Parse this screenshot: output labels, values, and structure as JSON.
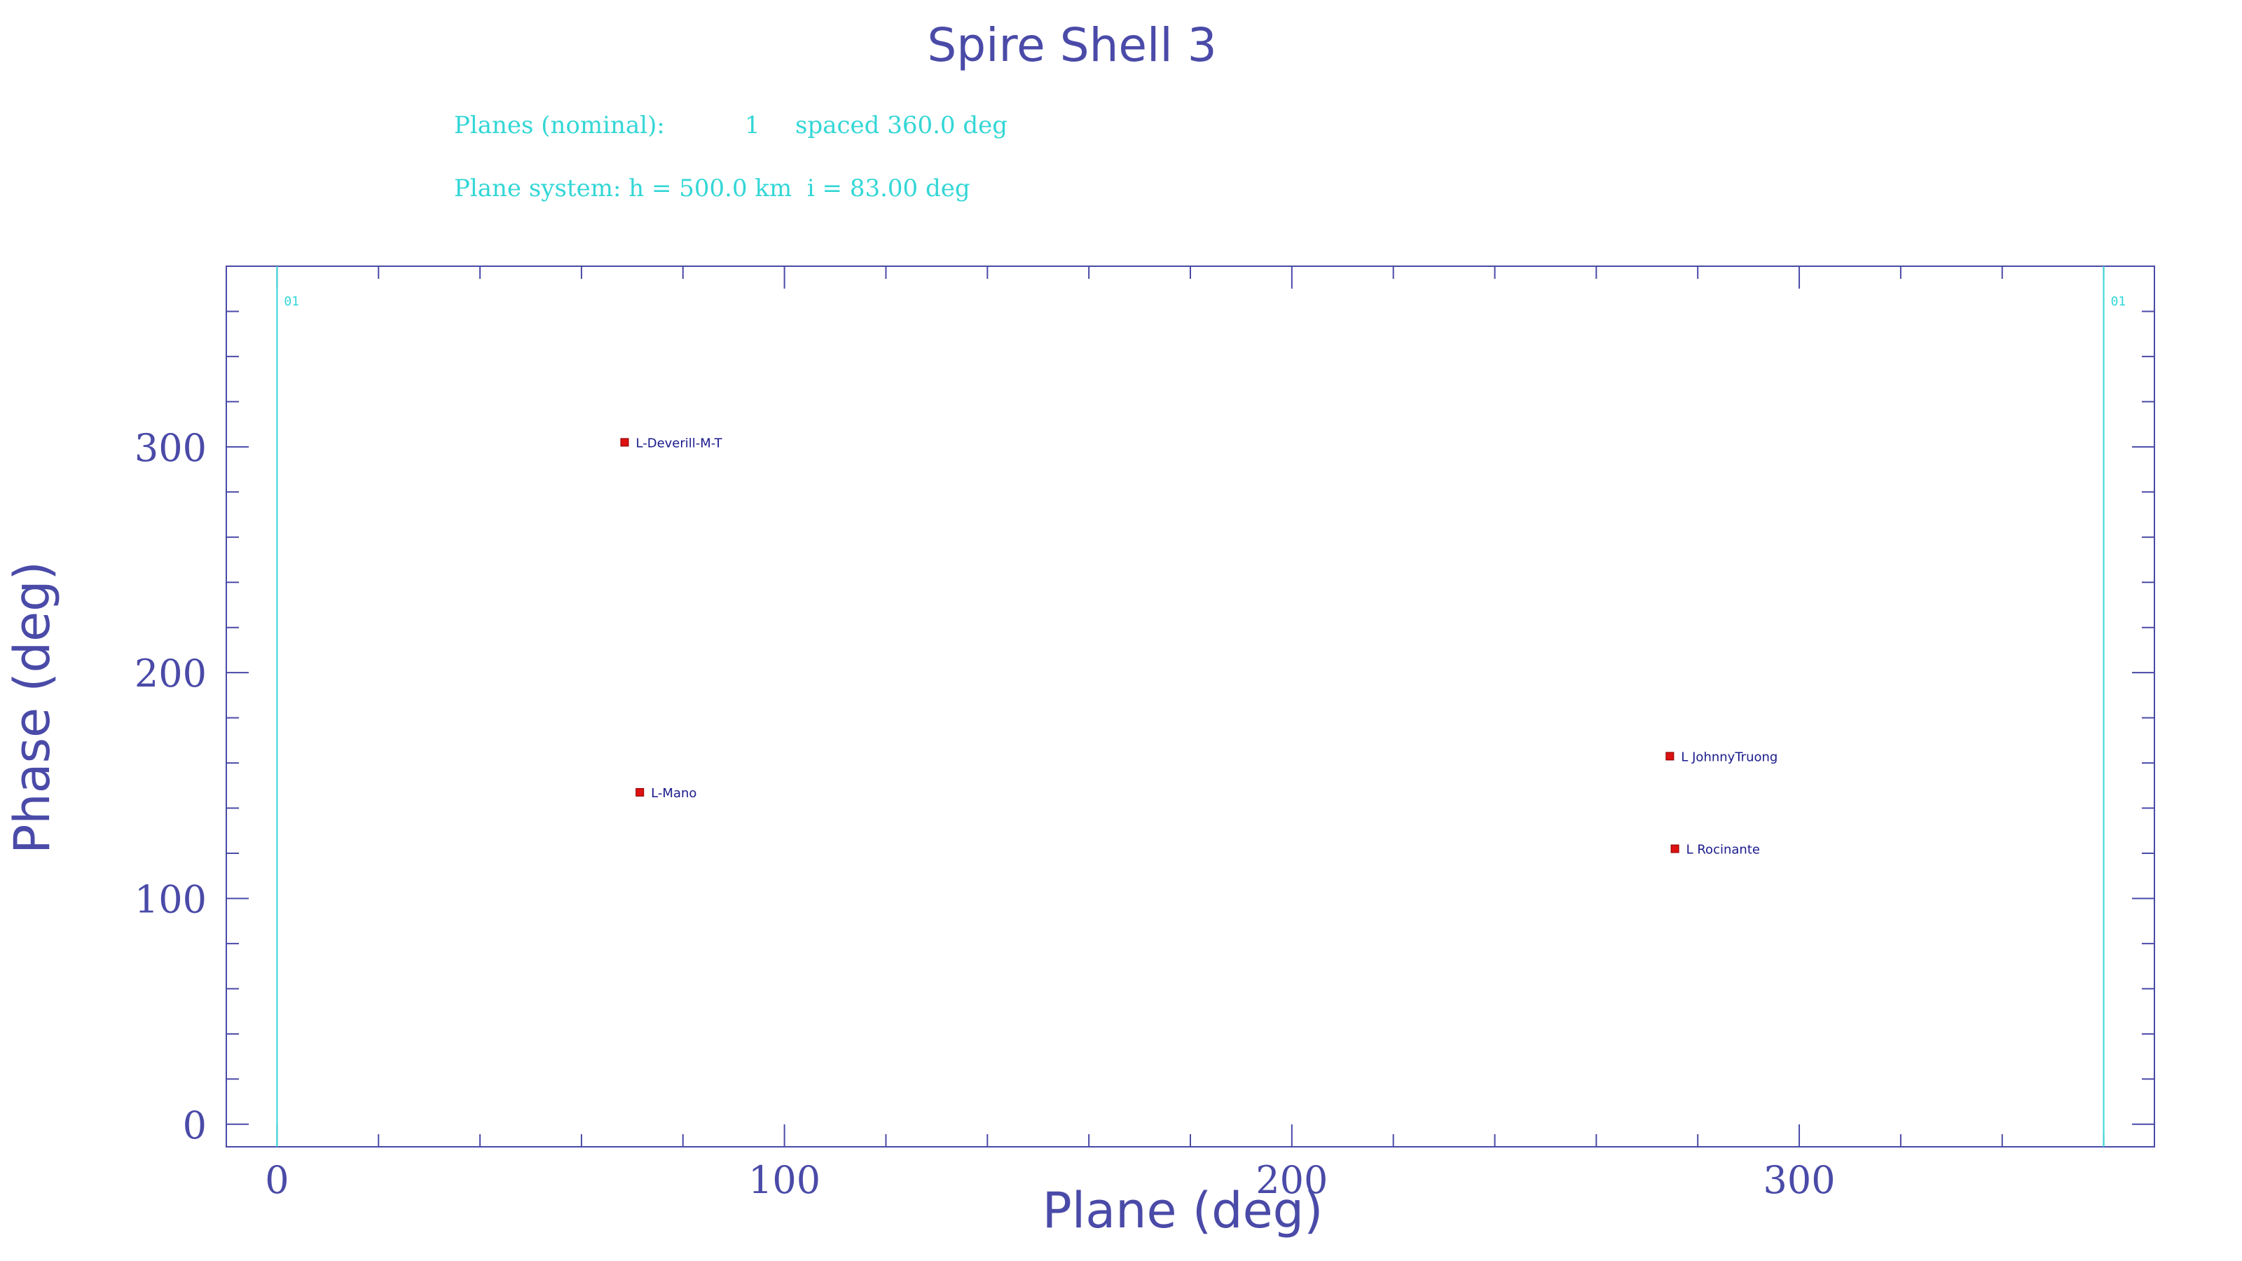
{
  "chart_data": {
    "type": "scatter",
    "title": "Spire Shell 3",
    "info_lines": [
      {
        "label": "Planes (nominal):",
        "count": "1",
        "spacing": "spaced 360.0 deg"
      },
      {
        "label": "Plane system: h = 500.0 km  i = 83.00 deg"
      }
    ],
    "xlabel": "Plane (deg)",
    "ylabel": "Phase (deg)",
    "xlim": [
      -10,
      370
    ],
    "ylim": [
      -10,
      380
    ],
    "x_major_ticks": [
      0,
      100,
      200,
      300
    ],
    "x_minor_step": 20,
    "y_major_ticks": [
      0,
      100,
      200,
      300
    ],
    "y_minor_step": 20,
    "plane_lines": [
      {
        "x": 0,
        "label": "01"
      },
      {
        "x": 360,
        "label": "01"
      }
    ],
    "points": [
      {
        "label": "L-Deverill-M-T",
        "x": 68.5,
        "y": 302
      },
      {
        "label": "L-Mano",
        "x": 71.5,
        "y": 147
      },
      {
        "label": "L JohnnyTruong",
        "x": 274.5,
        "y": 163
      },
      {
        "label": "L Rocinante",
        "x": 275.5,
        "y": 122
      }
    ],
    "colors": {
      "frame": "#4a4aa8",
      "plane_line": "#33d6d6",
      "marker": "#dd1111",
      "point_label": "#1a1a8c"
    }
  }
}
